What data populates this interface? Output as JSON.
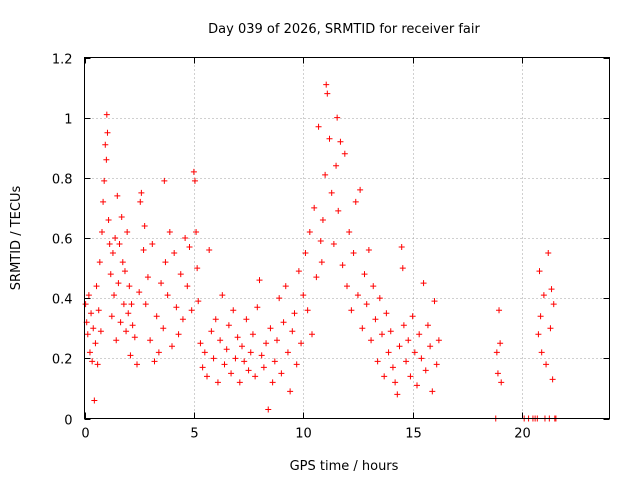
{
  "chart_data": {
    "type": "scatter",
    "title": "Day 039 of 2026, SRMTID for receiver fair",
    "xlabel": "GPS time / hours",
    "ylabel": "SRMTID / TECUs",
    "xlim": [
      0,
      24
    ],
    "ylim": [
      0,
      1.2
    ],
    "xticks": [
      0,
      5,
      10,
      15,
      20
    ],
    "xtick_labels": [
      "0",
      "5",
      "10",
      "15",
      "20"
    ],
    "yticks": [
      0,
      0.2,
      0.4,
      0.6,
      0.8,
      1.0,
      1.2
    ],
    "ytick_labels": [
      "0",
      "0.2",
      "0.4",
      "0.6",
      "0.8",
      "1",
      "1.2"
    ],
    "grid": true,
    "marker": "plus",
    "color": "#ff0000",
    "series": [
      {
        "name": "SRMTID",
        "points": [
          [
            0.05,
            0.38
          ],
          [
            0.1,
            0.32
          ],
          [
            0.15,
            0.28
          ],
          [
            0.2,
            0.41
          ],
          [
            0.25,
            0.22
          ],
          [
            0.3,
            0.35
          ],
          [
            0.35,
            0.19
          ],
          [
            0.4,
            0.3
          ],
          [
            0.45,
            0.06
          ],
          [
            0.5,
            0.25
          ],
          [
            0.55,
            0.44
          ],
          [
            0.6,
            0.18
          ],
          [
            0.65,
            0.36
          ],
          [
            0.7,
            0.52
          ],
          [
            0.75,
            0.29
          ],
          [
            0.8,
            0.62
          ],
          [
            0.85,
            0.72
          ],
          [
            0.9,
            0.79
          ],
          [
            0.95,
            0.91
          ],
          [
            1.0,
            0.86
          ],
          [
            1.02,
            1.01
          ],
          [
            1.05,
            0.95
          ],
          [
            1.1,
            0.66
          ],
          [
            1.15,
            0.58
          ],
          [
            1.2,
            0.48
          ],
          [
            1.25,
            0.34
          ],
          [
            1.3,
            0.55
          ],
          [
            1.35,
            0.41
          ],
          [
            1.4,
            0.6
          ],
          [
            1.45,
            0.26
          ],
          [
            1.5,
            0.74
          ],
          [
            1.55,
            0.45
          ],
          [
            1.6,
            0.58
          ],
          [
            1.65,
            0.32
          ],
          [
            1.7,
            0.67
          ],
          [
            1.75,
            0.52
          ],
          [
            1.8,
            0.38
          ],
          [
            1.85,
            0.49
          ],
          [
            1.9,
            0.29
          ],
          [
            1.95,
            0.62
          ],
          [
            2.0,
            0.35
          ],
          [
            2.05,
            0.44
          ],
          [
            2.1,
            0.21
          ],
          [
            2.15,
            0.38
          ],
          [
            2.2,
            0.31
          ],
          [
            2.3,
            0.27
          ],
          [
            2.4,
            0.18
          ],
          [
            2.5,
            0.42
          ],
          [
            2.55,
            0.72
          ],
          [
            2.6,
            0.75
          ],
          [
            2.7,
            0.56
          ],
          [
            2.75,
            0.64
          ],
          [
            2.8,
            0.38
          ],
          [
            2.9,
            0.47
          ],
          [
            3.0,
            0.26
          ],
          [
            3.1,
            0.58
          ],
          [
            3.2,
            0.19
          ],
          [
            3.3,
            0.34
          ],
          [
            3.4,
            0.22
          ],
          [
            3.5,
            0.45
          ],
          [
            3.6,
            0.3
          ],
          [
            3.65,
            0.79
          ],
          [
            3.7,
            0.52
          ],
          [
            3.8,
            0.41
          ],
          [
            3.9,
            0.62
          ],
          [
            4.0,
            0.24
          ],
          [
            4.1,
            0.55
          ],
          [
            4.2,
            0.37
          ],
          [
            4.3,
            0.28
          ],
          [
            4.4,
            0.48
          ],
          [
            4.5,
            0.33
          ],
          [
            4.6,
            0.6
          ],
          [
            4.7,
            0.44
          ],
          [
            4.8,
            0.57
          ],
          [
            4.9,
            0.36
          ],
          [
            5.0,
            0.82
          ],
          [
            5.05,
            0.79
          ],
          [
            5.1,
            0.62
          ],
          [
            5.15,
            0.5
          ],
          [
            5.2,
            0.39
          ],
          [
            5.3,
            0.25
          ],
          [
            5.4,
            0.17
          ],
          [
            5.5,
            0.22
          ],
          [
            5.6,
            0.14
          ],
          [
            5.7,
            0.56
          ],
          [
            5.8,
            0.29
          ],
          [
            5.9,
            0.2
          ],
          [
            6.0,
            0.33
          ],
          [
            6.1,
            0.12
          ],
          [
            6.2,
            0.26
          ],
          [
            6.3,
            0.41
          ],
          [
            6.4,
            0.18
          ],
          [
            6.5,
            0.23
          ],
          [
            6.6,
            0.31
          ],
          [
            6.7,
            0.15
          ],
          [
            6.8,
            0.36
          ],
          [
            6.9,
            0.2
          ],
          [
            7.0,
            0.27
          ],
          [
            7.1,
            0.12
          ],
          [
            7.2,
            0.24
          ],
          [
            7.3,
            0.19
          ],
          [
            7.4,
            0.33
          ],
          [
            7.5,
            0.16
          ],
          [
            7.6,
            0.22
          ],
          [
            7.7,
            0.28
          ],
          [
            7.8,
            0.14
          ],
          [
            7.9,
            0.37
          ],
          [
            8.0,
            0.46
          ],
          [
            8.1,
            0.21
          ],
          [
            8.2,
            0.17
          ],
          [
            8.3,
            0.25
          ],
          [
            8.4,
            0.03
          ],
          [
            8.5,
            0.3
          ],
          [
            8.6,
            0.12
          ],
          [
            8.7,
            0.19
          ],
          [
            8.8,
            0.26
          ],
          [
            8.9,
            0.4
          ],
          [
            9.0,
            0.15
          ],
          [
            9.1,
            0.32
          ],
          [
            9.2,
            0.44
          ],
          [
            9.3,
            0.22
          ],
          [
            9.4,
            0.09
          ],
          [
            9.5,
            0.29
          ],
          [
            9.6,
            0.35
          ],
          [
            9.7,
            0.18
          ],
          [
            9.8,
            0.49
          ],
          [
            9.9,
            0.25
          ],
          [
            10.0,
            0.41
          ],
          [
            10.1,
            0.55
          ],
          [
            10.2,
            0.36
          ],
          [
            10.3,
            0.62
          ],
          [
            10.4,
            0.28
          ],
          [
            10.5,
            0.7
          ],
          [
            10.6,
            0.47
          ],
          [
            10.7,
            0.97
          ],
          [
            10.8,
            0.59
          ],
          [
            10.85,
            0.52
          ],
          [
            10.9,
            0.66
          ],
          [
            11.0,
            0.81
          ],
          [
            11.05,
            1.11
          ],
          [
            11.1,
            1.08
          ],
          [
            11.2,
            0.93
          ],
          [
            11.3,
            0.75
          ],
          [
            11.4,
            0.58
          ],
          [
            11.5,
            0.84
          ],
          [
            11.55,
            1.0
          ],
          [
            11.6,
            0.69
          ],
          [
            11.7,
            0.92
          ],
          [
            11.8,
            0.51
          ],
          [
            11.9,
            0.88
          ],
          [
            12.0,
            0.44
          ],
          [
            12.1,
            0.62
          ],
          [
            12.2,
            0.36
          ],
          [
            12.3,
            0.55
          ],
          [
            12.4,
            0.72
          ],
          [
            12.5,
            0.41
          ],
          [
            12.6,
            0.76
          ],
          [
            12.7,
            0.3
          ],
          [
            12.8,
            0.48
          ],
          [
            12.9,
            0.38
          ],
          [
            13.0,
            0.56
          ],
          [
            13.1,
            0.26
          ],
          [
            13.2,
            0.44
          ],
          [
            13.3,
            0.33
          ],
          [
            13.4,
            0.19
          ],
          [
            13.5,
            0.4
          ],
          [
            13.6,
            0.28
          ],
          [
            13.7,
            0.14
          ],
          [
            13.8,
            0.35
          ],
          [
            13.9,
            0.22
          ],
          [
            14.0,
            0.29
          ],
          [
            14.1,
            0.17
          ],
          [
            14.2,
            0.12
          ],
          [
            14.3,
            0.08
          ],
          [
            14.4,
            0.24
          ],
          [
            14.5,
            0.57
          ],
          [
            14.55,
            0.5
          ],
          [
            14.6,
            0.31
          ],
          [
            14.7,
            0.19
          ],
          [
            14.8,
            0.26
          ],
          [
            14.9,
            0.14
          ],
          [
            15.0,
            0.34
          ],
          [
            15.1,
            0.22
          ],
          [
            15.2,
            0.11
          ],
          [
            15.3,
            0.28
          ],
          [
            15.4,
            0.2
          ],
          [
            15.5,
            0.45
          ],
          [
            15.6,
            0.16
          ],
          [
            15.7,
            0.31
          ],
          [
            15.8,
            0.24
          ],
          [
            15.9,
            0.09
          ],
          [
            16.0,
            0.39
          ],
          [
            16.1,
            0.18
          ],
          [
            16.2,
            0.26
          ],
          [
            18.8,
            0.0
          ],
          [
            18.85,
            0.22
          ],
          [
            18.9,
            0.15
          ],
          [
            18.95,
            0.36
          ],
          [
            19.0,
            0.25
          ],
          [
            19.05,
            0.12
          ],
          [
            20.1,
            0.0
          ],
          [
            20.3,
            0.0
          ],
          [
            20.5,
            0.0
          ],
          [
            20.6,
            0.0
          ],
          [
            20.7,
            0.0
          ],
          [
            20.75,
            0.28
          ],
          [
            20.8,
            0.49
          ],
          [
            20.85,
            0.34
          ],
          [
            20.9,
            0.22
          ],
          [
            21.0,
            0.41
          ],
          [
            21.05,
            0.0
          ],
          [
            21.1,
            0.18
          ],
          [
            21.2,
            0.55
          ],
          [
            21.25,
            0.0
          ],
          [
            21.3,
            0.3
          ],
          [
            21.35,
            0.43
          ],
          [
            21.4,
            0.13
          ],
          [
            21.45,
            0.38
          ],
          [
            21.5,
            0.0
          ],
          [
            21.55,
            0.0
          ]
        ]
      }
    ]
  }
}
